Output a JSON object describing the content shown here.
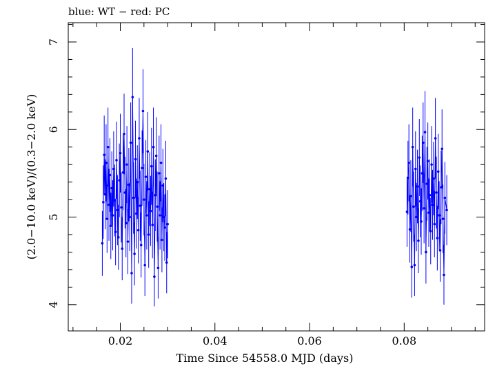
{
  "chart_data": {
    "type": "scatter",
    "title": "blue: WT − red: PC",
    "xlabel": "Time Since 54558.0 MJD (days)",
    "ylabel": "(2.0−10.0 keV)/(0.3−2.0 keV)",
    "xlim": [
      0.009,
      0.097
    ],
    "ylim": [
      3.7,
      7.22
    ],
    "x_ticks": [
      0.02,
      0.04,
      0.06,
      0.08
    ],
    "x_tick_labels": [
      "0.02",
      "0.04",
      "0.06",
      "0.08"
    ],
    "y_ticks": [
      4,
      5,
      6,
      7
    ],
    "y_tick_labels": [
      "4",
      "5",
      "6",
      "7"
    ],
    "grid": false,
    "colors": {
      "WT": "#0000ff",
      "PC": "#ff0000"
    },
    "series": [
      {
        "name": "WT",
        "color": "#0000ff",
        "points": [
          {
            "x": 0.0162,
            "y": 4.7,
            "err": 0.37
          },
          {
            "x": 0.0164,
            "y": 5.17,
            "err": 0.42
          },
          {
            "x": 0.0166,
            "y": 5.71,
            "err": 0.45
          },
          {
            "x": 0.0168,
            "y": 5.26,
            "err": 0.4
          },
          {
            "x": 0.017,
            "y": 5.62,
            "err": 0.44
          },
          {
            "x": 0.0172,
            "y": 4.98,
            "err": 0.39
          },
          {
            "x": 0.0174,
            "y": 5.8,
            "err": 0.45
          },
          {
            "x": 0.0176,
            "y": 5.14,
            "err": 0.41
          },
          {
            "x": 0.0178,
            "y": 5.48,
            "err": 0.42
          },
          {
            "x": 0.018,
            "y": 4.9,
            "err": 0.38
          },
          {
            "x": 0.0182,
            "y": 5.33,
            "err": 0.42
          },
          {
            "x": 0.0184,
            "y": 5.02,
            "err": 0.4
          },
          {
            "x": 0.0186,
            "y": 5.55,
            "err": 0.43
          },
          {
            "x": 0.0188,
            "y": 5.19,
            "err": 0.41
          },
          {
            "x": 0.019,
            "y": 4.83,
            "err": 0.38
          },
          {
            "x": 0.0192,
            "y": 5.65,
            "err": 0.44
          },
          {
            "x": 0.0194,
            "y": 5.08,
            "err": 0.4
          },
          {
            "x": 0.0196,
            "y": 4.77,
            "err": 0.37
          },
          {
            "x": 0.0198,
            "y": 5.42,
            "err": 0.42
          },
          {
            "x": 0.02,
            "y": 5.73,
            "err": 0.45
          },
          {
            "x": 0.0202,
            "y": 5.11,
            "err": 0.4
          },
          {
            "x": 0.0204,
            "y": 4.64,
            "err": 0.36
          },
          {
            "x": 0.0206,
            "y": 5.51,
            "err": 0.43
          },
          {
            "x": 0.0208,
            "y": 5.95,
            "err": 0.46
          },
          {
            "x": 0.021,
            "y": 5.28,
            "err": 0.41
          },
          {
            "x": 0.0212,
            "y": 4.93,
            "err": 0.39
          },
          {
            "x": 0.0214,
            "y": 5.6,
            "err": 0.44
          },
          {
            "x": 0.0216,
            "y": 4.72,
            "err": 0.37
          },
          {
            "x": 0.0218,
            "y": 5.37,
            "err": 0.42
          },
          {
            "x": 0.022,
            "y": 5.0,
            "err": 0.39
          },
          {
            "x": 0.0222,
            "y": 5.85,
            "err": 0.46
          },
          {
            "x": 0.0224,
            "y": 4.36,
            "err": 0.35
          },
          {
            "x": 0.0226,
            "y": 6.37,
            "err": 0.56
          },
          {
            "x": 0.0228,
            "y": 5.22,
            "err": 0.41
          },
          {
            "x": 0.023,
            "y": 4.58,
            "err": 0.36
          },
          {
            "x": 0.0232,
            "y": 5.66,
            "err": 0.44
          },
          {
            "x": 0.0234,
            "y": 5.04,
            "err": 0.4
          },
          {
            "x": 0.0236,
            "y": 5.4,
            "err": 0.42
          },
          {
            "x": 0.0238,
            "y": 4.85,
            "err": 0.38
          },
          {
            "x": 0.024,
            "y": 5.9,
            "err": 0.46
          },
          {
            "x": 0.0242,
            "y": 5.13,
            "err": 0.4
          },
          {
            "x": 0.0244,
            "y": 4.68,
            "err": 0.37
          },
          {
            "x": 0.0246,
            "y": 5.56,
            "err": 0.43
          },
          {
            "x": 0.0248,
            "y": 6.21,
            "err": 0.48
          },
          {
            "x": 0.025,
            "y": 5.2,
            "err": 0.41
          },
          {
            "x": 0.0252,
            "y": 4.45,
            "err": 0.35
          },
          {
            "x": 0.0254,
            "y": 5.46,
            "err": 0.42
          },
          {
            "x": 0.0256,
            "y": 5.02,
            "err": 0.39
          },
          {
            "x": 0.0258,
            "y": 5.75,
            "err": 0.45
          },
          {
            "x": 0.026,
            "y": 4.8,
            "err": 0.38
          },
          {
            "x": 0.0262,
            "y": 5.32,
            "err": 0.42
          },
          {
            "x": 0.0264,
            "y": 5.07,
            "err": 0.4
          },
          {
            "x": 0.0266,
            "y": 5.58,
            "err": 0.44
          },
          {
            "x": 0.0268,
            "y": 4.91,
            "err": 0.38
          },
          {
            "x": 0.027,
            "y": 5.8,
            "err": 0.45
          },
          {
            "x": 0.0272,
            "y": 4.32,
            "err": 0.34
          },
          {
            "x": 0.0274,
            "y": 5.25,
            "err": 0.41
          },
          {
            "x": 0.0276,
            "y": 5.7,
            "err": 0.44
          },
          {
            "x": 0.0278,
            "y": 5.12,
            "err": 0.4
          },
          {
            "x": 0.028,
            "y": 4.42,
            "err": 0.35
          },
          {
            "x": 0.0282,
            "y": 5.5,
            "err": 0.43
          },
          {
            "x": 0.0284,
            "y": 5.02,
            "err": 0.39
          },
          {
            "x": 0.0286,
            "y": 5.62,
            "err": 0.44
          },
          {
            "x": 0.0288,
            "y": 4.74,
            "err": 0.37
          },
          {
            "x": 0.029,
            "y": 5.36,
            "err": 0.42
          },
          {
            "x": 0.0292,
            "y": 5.0,
            "err": 0.39
          },
          {
            "x": 0.0294,
            "y": 4.88,
            "err": 0.38
          },
          {
            "x": 0.0296,
            "y": 5.44,
            "err": 0.43
          },
          {
            "x": 0.0298,
            "y": 4.48,
            "err": 0.35
          },
          {
            "x": 0.03,
            "y": 4.92,
            "err": 0.39
          },
          {
            "x": 0.0806,
            "y": 5.06,
            "err": 0.4
          },
          {
            "x": 0.0808,
            "y": 5.45,
            "err": 0.42
          },
          {
            "x": 0.081,
            "y": 5.62,
            "err": 0.44
          },
          {
            "x": 0.0812,
            "y": 4.86,
            "err": 0.38
          },
          {
            "x": 0.0814,
            "y": 5.24,
            "err": 0.41
          },
          {
            "x": 0.0816,
            "y": 4.43,
            "err": 0.35
          },
          {
            "x": 0.0818,
            "y": 5.8,
            "err": 0.45
          },
          {
            "x": 0.082,
            "y": 5.12,
            "err": 0.4
          },
          {
            "x": 0.0822,
            "y": 4.45,
            "err": 0.35
          },
          {
            "x": 0.0824,
            "y": 5.55,
            "err": 0.43
          },
          {
            "x": 0.0826,
            "y": 5.0,
            "err": 0.39
          },
          {
            "x": 0.0828,
            "y": 5.35,
            "err": 0.42
          },
          {
            "x": 0.083,
            "y": 4.73,
            "err": 0.37
          },
          {
            "x": 0.0832,
            "y": 5.68,
            "err": 0.44
          },
          {
            "x": 0.0834,
            "y": 5.18,
            "err": 0.41
          },
          {
            "x": 0.0836,
            "y": 4.95,
            "err": 0.38
          },
          {
            "x": 0.0838,
            "y": 5.5,
            "err": 0.43
          },
          {
            "x": 0.084,
            "y": 5.85,
            "err": 0.46
          },
          {
            "x": 0.0842,
            "y": 5.1,
            "err": 0.4
          },
          {
            "x": 0.0844,
            "y": 5.97,
            "err": 0.47
          },
          {
            "x": 0.0846,
            "y": 4.6,
            "err": 0.36
          },
          {
            "x": 0.0848,
            "y": 5.38,
            "err": 0.42
          },
          {
            "x": 0.085,
            "y": 5.64,
            "err": 0.44
          },
          {
            "x": 0.0852,
            "y": 5.05,
            "err": 0.39
          },
          {
            "x": 0.0854,
            "y": 5.25,
            "err": 0.41
          },
          {
            "x": 0.0856,
            "y": 4.84,
            "err": 0.38
          },
          {
            "x": 0.0858,
            "y": 5.6,
            "err": 0.44
          },
          {
            "x": 0.086,
            "y": 5.14,
            "err": 0.4
          },
          {
            "x": 0.0862,
            "y": 5.44,
            "err": 0.42
          },
          {
            "x": 0.0864,
            "y": 4.92,
            "err": 0.38
          },
          {
            "x": 0.0866,
            "y": 5.9,
            "err": 0.46
          },
          {
            "x": 0.0868,
            "y": 5.28,
            "err": 0.41
          },
          {
            "x": 0.087,
            "y": 4.76,
            "err": 0.37
          },
          {
            "x": 0.0872,
            "y": 5.52,
            "err": 0.43
          },
          {
            "x": 0.0874,
            "y": 5.02,
            "err": 0.39
          },
          {
            "x": 0.0876,
            "y": 4.62,
            "err": 0.36
          },
          {
            "x": 0.0878,
            "y": 5.34,
            "err": 0.42
          },
          {
            "x": 0.088,
            "y": 5.78,
            "err": 0.45
          },
          {
            "x": 0.0882,
            "y": 4.98,
            "err": 0.39
          },
          {
            "x": 0.0884,
            "y": 4.34,
            "err": 0.34
          },
          {
            "x": 0.0886,
            "y": 5.22,
            "err": 0.41
          },
          {
            "x": 0.089,
            "y": 5.08,
            "err": 0.4
          }
        ]
      }
    ]
  }
}
